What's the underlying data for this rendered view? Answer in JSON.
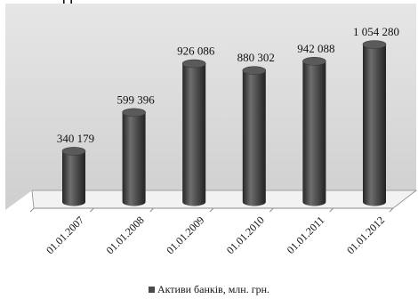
{
  "header_fragment": "[ ].",
  "chart_data": {
    "type": "bar",
    "style": "3d-cylinder",
    "categories": [
      "01.01.2007",
      "01.01.2008",
      "01.01.2009",
      "01.01.2010",
      "01.01.2011",
      "01.01.2012"
    ],
    "series": [
      {
        "name": "Активи банків, млн. грн.",
        "values": [
          340179,
          599396,
          926086,
          880302,
          942088,
          1054280
        ],
        "value_labels": [
          "340 179",
          "599 396",
          "926 086",
          "880 302",
          "942 088",
          "1 054 280"
        ]
      }
    ],
    "ylim": [
      0,
      1100000
    ],
    "grid": false,
    "legend_position": "bottom",
    "colors": {
      "bar": "#4a4a4a",
      "bar_dark": "#262626",
      "bar_light": "#7a7a7a",
      "bar_top": "#5a5a5a",
      "wall": "#d9d9d9",
      "floor": "#f2f2f2",
      "axis": "#8c8c8c"
    }
  }
}
